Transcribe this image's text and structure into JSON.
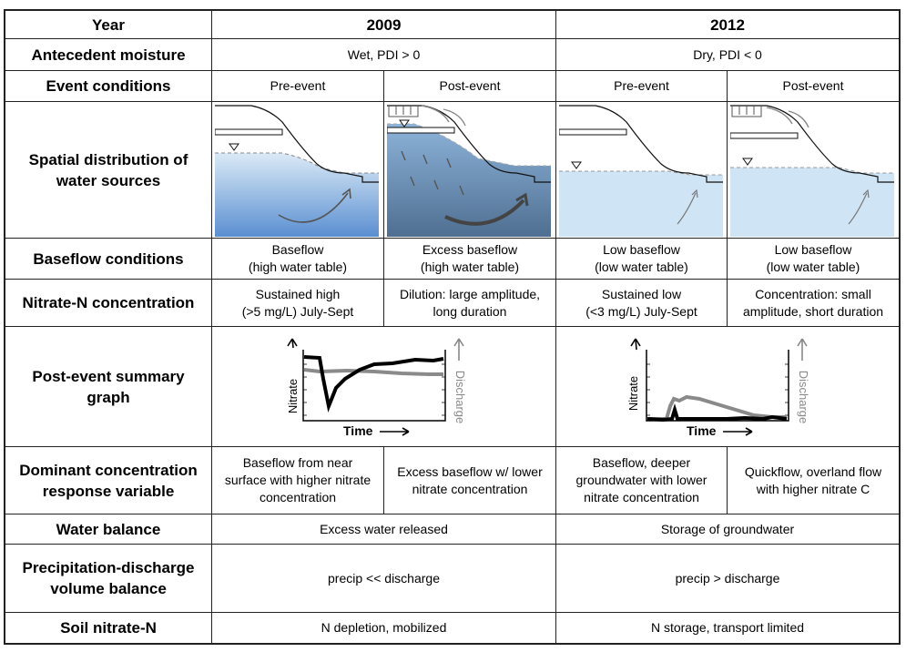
{
  "table": {
    "row_labels": {
      "year": "Year",
      "antecedent": "Antecedent moisture",
      "event": "Event conditions",
      "spatial": "Spatial distribution of\nwater sources",
      "baseflow": "Baseflow conditions",
      "nitrate": "Nitrate-N concentration",
      "summary": "Post-event summary\ngraph",
      "dominant": "Dominant concentration\nresponse variable",
      "balance": "Water balance",
      "volume": "Precipitation-discharge\nvolume balance",
      "soil": "Soil nitrate-N"
    },
    "y2009": {
      "year": "2009",
      "antecedent": "Wet, PDI > 0",
      "water_balance": "Excess water released",
      "volume_balance": "precip << discharge",
      "soil_nitrate": "N depletion, mobilized",
      "pre": {
        "event": "Pre-event",
        "baseflow": "Baseflow\n(high water table)",
        "nitrate": "Sustained high\n(>5 mg/L) July-Sept",
        "dominant": "Baseflow from near\nsurface with higher nitrate\nconcentration"
      },
      "post": {
        "event": "Post-event",
        "baseflow": "Excess baseflow\n(high water table)",
        "nitrate": "Dilution: large amplitude,\nlong duration",
        "dominant": "Excess baseflow w/ lower\nnitrate concentration"
      }
    },
    "y2012": {
      "year": "2012",
      "antecedent": "Dry, PDI < 0",
      "water_balance": "Storage of groundwater",
      "volume_balance": "precip > discharge",
      "soil_nitrate": "N storage, transport limited",
      "pre": {
        "event": "Pre-event",
        "baseflow": "Low baseflow\n(low water table)",
        "nitrate": "Sustained low\n(<3 mg/L) July-Sept",
        "dominant": "Baseflow, deeper\ngroundwater with lower\nnitrate concentration"
      },
      "post": {
        "event": "Post-event",
        "baseflow": "Low baseflow\n(low water table)",
        "nitrate": "Concentration: small\namplitude, short duration",
        "dominant": "Quickflow, overland flow\nwith higher nitrate C"
      }
    }
  },
  "graph_labels": {
    "nitrate": "Nitrate",
    "discharge": "Discharge",
    "time": "Time"
  },
  "colors": {
    "nitrate_line": "#000000",
    "discharge_line": "#8a8a8a",
    "water_light": "#d7e8f5",
    "water_deep": "#5b8fd0",
    "water_2012": "#cfe4f4"
  }
}
